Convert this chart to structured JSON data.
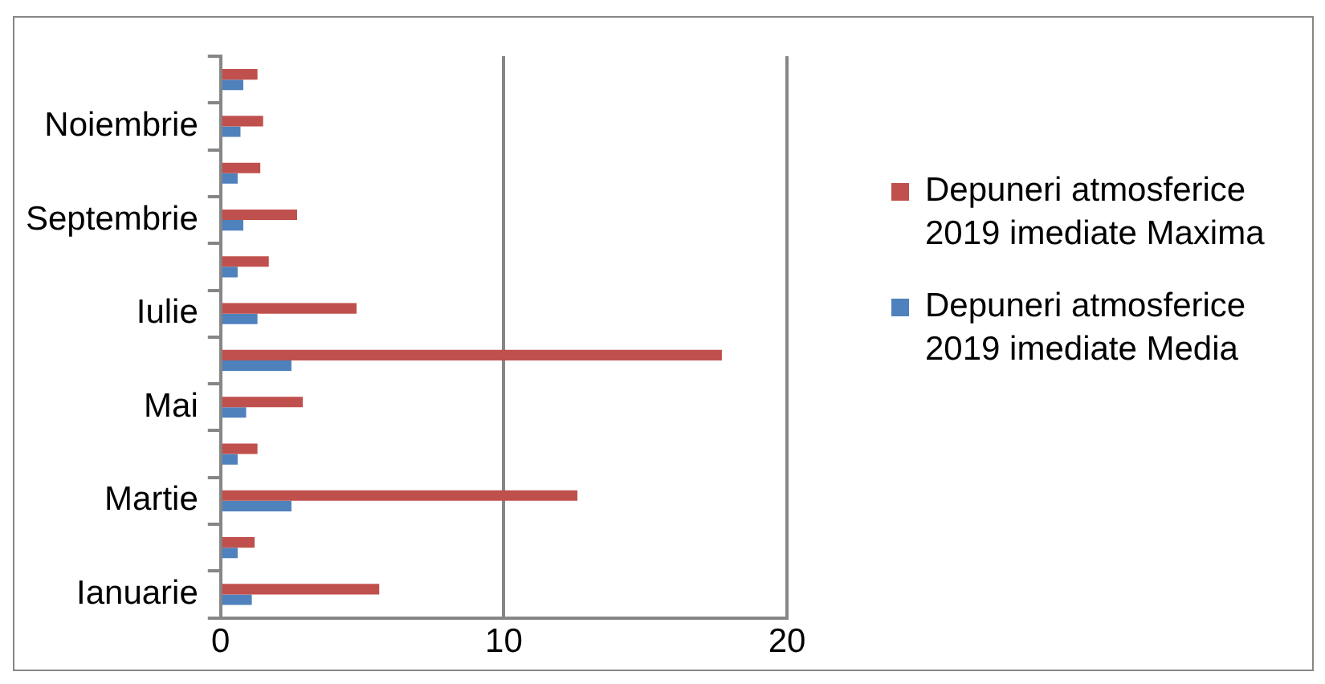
{
  "chart_data": {
    "type": "bar",
    "orientation": "horizontal",
    "categories": [
      null,
      "Noiembrie",
      null,
      "Septembrie",
      null,
      "Iulie",
      null,
      "Mai",
      null,
      "Martie",
      null,
      "Ianuarie"
    ],
    "series": [
      {
        "name": "Depuneri atmosferice 2019 imediate Maxima",
        "color": "#c0504d",
        "values": [
          1.3,
          1.5,
          1.4,
          2.7,
          1.7,
          4.8,
          17.7,
          2.9,
          1.3,
          12.6,
          1.2,
          5.6
        ]
      },
      {
        "name": "Depuneri atmosferice 2019 imediate Media",
        "color": "#4f81bd",
        "values": [
          0.8,
          0.7,
          0.6,
          0.8,
          0.6,
          1.3,
          2.5,
          0.9,
          0.6,
          2.5,
          0.6,
          1.1
        ]
      }
    ],
    "xlim": [
      0,
      20
    ],
    "xticks": [
      0,
      10,
      20
    ],
    "grid": "x",
    "legend": "right"
  }
}
